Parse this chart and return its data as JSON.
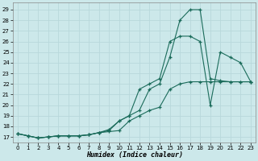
{
  "bg_color": "#cce8ea",
  "line_color": "#1a6b5a",
  "grid_color": "#b8d8db",
  "xlabel": "Humidex (Indice chaleur)",
  "xlim_min": -0.5,
  "xlim_max": 23.5,
  "ylim_min": 16.5,
  "ylim_max": 29.7,
  "yticks": [
    17,
    18,
    19,
    20,
    21,
    22,
    23,
    24,
    25,
    26,
    27,
    28,
    29
  ],
  "xticks": [
    0,
    1,
    2,
    3,
    4,
    5,
    6,
    7,
    8,
    9,
    10,
    11,
    12,
    13,
    14,
    15,
    16,
    17,
    18,
    19,
    20,
    21,
    22,
    23
  ],
  "line1_x": [
    0,
    1,
    2,
    3,
    4,
    5,
    6,
    7,
    8,
    9,
    10,
    11,
    12,
    13,
    14,
    15,
    16,
    17,
    18,
    19,
    20,
    21,
    22,
    23
  ],
  "line1_y": [
    17.3,
    17.1,
    16.9,
    17.0,
    17.1,
    17.1,
    17.1,
    17.2,
    17.4,
    17.5,
    17.6,
    18.5,
    19.0,
    19.5,
    19.8,
    21.5,
    22.0,
    22.2,
    22.2,
    22.2,
    22.2,
    22.2,
    22.2,
    22.2
  ],
  "line2_x": [
    0,
    1,
    2,
    3,
    4,
    5,
    6,
    7,
    8,
    9,
    10,
    11,
    12,
    13,
    14,
    15,
    16,
    17,
    18,
    19,
    20,
    21,
    22,
    23
  ],
  "line2_y": [
    17.3,
    17.1,
    16.9,
    17.0,
    17.1,
    17.1,
    17.1,
    17.2,
    17.4,
    17.6,
    18.5,
    19.0,
    19.5,
    21.5,
    22.0,
    24.5,
    28.0,
    29.0,
    29.0,
    22.5,
    22.3,
    22.2,
    22.2,
    22.2
  ],
  "line3_x": [
    0,
    1,
    2,
    3,
    4,
    5,
    6,
    7,
    8,
    9,
    10,
    11,
    12,
    13,
    14,
    15,
    16,
    17,
    18,
    19,
    20,
    21,
    22,
    23
  ],
  "line3_y": [
    17.3,
    17.1,
    16.9,
    17.0,
    17.1,
    17.1,
    17.1,
    17.2,
    17.4,
    17.7,
    18.5,
    19.0,
    21.5,
    22.0,
    22.5,
    26.0,
    26.5,
    26.5,
    26.0,
    20.0,
    25.0,
    24.5,
    24.0,
    22.2
  ]
}
